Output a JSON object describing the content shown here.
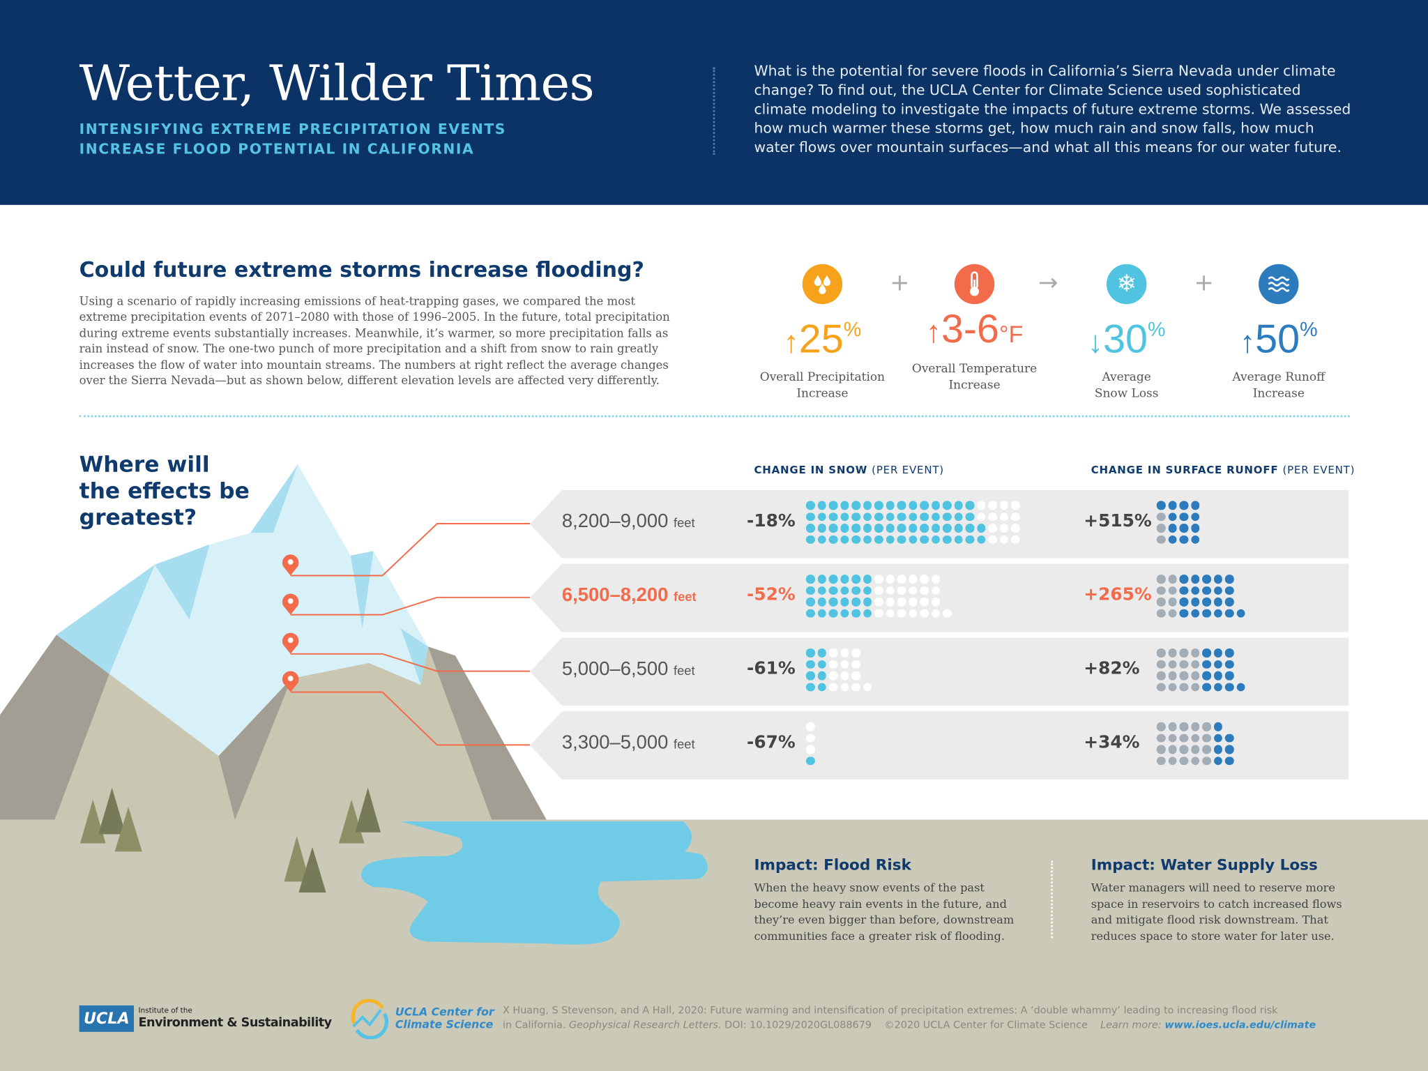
{
  "header": {
    "title": "Wetter, Wilder Times",
    "subtitle_line1": "INTENSIFYING EXTREME PRECIPITATION EVENTS",
    "subtitle_line2": "INCREASE FLOOD POTENTIAL IN CALIFORNIA",
    "intro": "What is the potential for severe floods in California’s Sierra Nevada under climate change? To find out, the UCLA Center for Climate Science used sophisticated climate modeling to investigate the impacts of future extreme storms. We assessed how much warmer these storms get, how much rain and snow falls, how much water flows over mountain surfaces—and what all this means for our water future."
  },
  "question": {
    "title": "Could future extreme storms increase flooding?",
    "body": "Using a scenario of rapidly increasing emissions of heat-trapping gases, we compared the most extreme precipitation events of 2071–2080 with those of 1996–2005. In the future, total precipitation during extreme events substantially increases. Meanwhile, it’s warmer, so more precipitation falls as rain instead of snow. The one-two punch of more precipitation and a shift from snow to rain greatly increases the flow of water into mountain streams. The numbers at right reflect the average changes over the Sierra Nevada—but as shown below, different elevation levels are affected very differently."
  },
  "stats": [
    {
      "icon": "water-drops-icon",
      "arrow": "↑",
      "value": "25",
      "unit": "%",
      "label1": "Overall Precipitation",
      "label2": "Increase",
      "color": "#f7a21b"
    },
    {
      "icon": "thermometer-icon",
      "arrow": "↑",
      "value": "3-6",
      "unit": "°F",
      "label1": "Overall Temperature",
      "label2": "Increase",
      "color": "#f26b4b"
    },
    {
      "icon": "snowflake-icon",
      "arrow": "↓",
      "value": "30",
      "unit": "%",
      "label1": "Average",
      "label2": "Snow Loss",
      "color": "#4fc3df"
    },
    {
      "icon": "waves-icon",
      "arrow": "↑",
      "value": "50",
      "unit": "%",
      "label1": "Average Runoff",
      "label2": "Increase",
      "color": "#2b7bbd"
    }
  ],
  "operators": {
    "plus": "+",
    "arrow": "→"
  },
  "where": {
    "line1": "Where will",
    "line2": "the effects be",
    "line3": "greatest?"
  },
  "columns": {
    "snow": "CHANGE IN SNOW",
    "snow_suffix": "(PER EVENT)",
    "runoff": "CHANGE IN SURFACE RUNOFF",
    "runoff_suffix": "(PER EVENT)"
  },
  "colors": {
    "snow_dot": "#4fc3df",
    "snow_lost": "#ffffff",
    "runoff_base": "#a3adb6",
    "runoff_new": "#2b7bbd",
    "highlight": "#f26b4b"
  },
  "rows": [
    {
      "elevation": "8,200–9,000",
      "unit": "feet",
      "snow_pct": "-18%",
      "runoff_pct": "+515%",
      "highlight": false,
      "snow_grid": [
        [
          15,
          4
        ],
        [
          15,
          4
        ],
        [
          16,
          3
        ],
        [
          16,
          3
        ]
      ],
      "runoff_grid": [
        [
          0,
          4
        ],
        [
          1,
          3
        ],
        [
          1,
          3
        ],
        [
          1,
          3
        ]
      ]
    },
    {
      "elevation": "6,500–8,200",
      "unit": "feet",
      "snow_pct": "-52%",
      "runoff_pct": "+265%",
      "highlight": true,
      "snow_grid": [
        [
          6,
          6
        ],
        [
          6,
          6
        ],
        [
          6,
          6
        ],
        [
          6,
          7
        ]
      ],
      "runoff_grid": [
        [
          2,
          5
        ],
        [
          2,
          5
        ],
        [
          2,
          5
        ],
        [
          2,
          6
        ]
      ]
    },
    {
      "elevation": "5,000–6,500",
      "unit": "feet",
      "snow_pct": "-61%",
      "runoff_pct": "+82%",
      "highlight": false,
      "snow_grid": [
        [
          2,
          3
        ],
        [
          2,
          3
        ],
        [
          2,
          3
        ],
        [
          2,
          4
        ]
      ],
      "runoff_grid": [
        [
          4,
          3
        ],
        [
          4,
          3
        ],
        [
          4,
          3
        ],
        [
          4,
          4
        ]
      ]
    },
    {
      "elevation": "3,300–5,000",
      "unit": "feet",
      "snow_pct": "-67%",
      "runoff_pct": "+34%",
      "highlight": false,
      "snow_grid": [
        [
          0,
          1
        ],
        [
          0,
          1
        ],
        [
          0,
          1
        ],
        [
          1,
          0
        ]
      ],
      "runoff_grid": [
        [
          5,
          1
        ],
        [
          5,
          2
        ],
        [
          5,
          2
        ],
        [
          5,
          2
        ]
      ]
    }
  ],
  "impacts": [
    {
      "title": "Impact: Flood Risk",
      "body": "When the heavy snow events of the past become heavy rain events in the future, and they’re even bigger than before, downstream communities face a greater risk of flooding."
    },
    {
      "title": "Impact: Water Supply Loss",
      "body": "Water managers will need to reserve more space in reservoirs to catch increased flows and mitigate flood risk downstream. That reduces space to store water for later use."
    }
  ],
  "footer": {
    "ucla": "UCLA",
    "ies_small": "Institute of the",
    "ies": "Environment & Sustainability",
    "ccs_line1": "UCLA Center for",
    "ccs_line2": "Climate Science",
    "citation_line1": "X Huang, S Stevenson, and A Hall, 2020: Future warming and intensification of precipitation extremes: A ‘double whammy’ leading to increasing flood risk",
    "citation_line2a": "in California.",
    "citation_journal": "Geophysical Research Letters.",
    "citation_doi": "DOI: 10.1029/2020GL088679",
    "copyright": "©2020 UCLA Center for Climate Science",
    "learn_more": "Learn more:",
    "url": "www.ioes.ucla.edu/climate"
  }
}
